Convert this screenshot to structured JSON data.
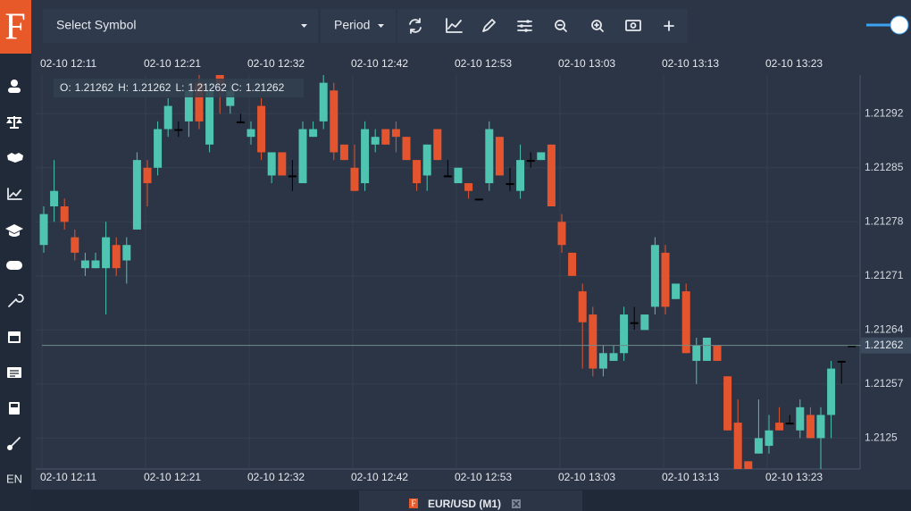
{
  "sidebar": {
    "logo": "F",
    "language": "EN"
  },
  "toolbar": {
    "symbol_select": "Select Symbol",
    "period": "Period"
  },
  "chart": {
    "type": "candlestick",
    "ylim": [
      1.21246,
      1.21297
    ],
    "yticks": [
      1.21292,
      1.21285,
      1.21278,
      1.21271,
      1.21264,
      1.21257,
      1.2125
    ],
    "xticks": [
      "02-10 12:11",
      "02-10 12:21",
      "02-10 12:32",
      "02-10 12:42",
      "02-10 12:53",
      "02-10 13:03",
      "02-10 13:13",
      "02-10 13:23"
    ],
    "legend": [
      {
        "label": "O:",
        "value": 1.21262
      },
      {
        "label": "H:",
        "value": 1.21262
      },
      {
        "label": "L:",
        "value": 1.21262
      },
      {
        "label": "C:",
        "value": 1.21262
      }
    ],
    "last_price": 1.21262,
    "colors": {
      "up": "#4fc4b0",
      "down": "#e4552f",
      "flat": "#000000"
    },
    "candles": [
      [
        1.21275,
        1.2128,
        1.21274,
        1.21279
      ],
      [
        1.2128,
        1.21286,
        1.21278,
        1.21282
      ],
      [
        1.2128,
        1.21281,
        1.21277,
        1.21278
      ],
      [
        1.21276,
        1.21277,
        1.21273,
        1.21274
      ],
      [
        1.21272,
        1.21274,
        1.21271,
        1.21273
      ],
      [
        1.21272,
        1.21274,
        1.21272,
        1.21273
      ],
      [
        1.21272,
        1.21278,
        1.21266,
        1.21276
      ],
      [
        1.21275,
        1.21276,
        1.21271,
        1.21272
      ],
      [
        1.21273,
        1.21276,
        1.2127,
        1.21275
      ],
      [
        1.21277,
        1.21287,
        1.21277,
        1.21286
      ],
      [
        1.21285,
        1.21286,
        1.2128,
        1.21283
      ],
      [
        1.21285,
        1.21291,
        1.21284,
        1.2129
      ],
      [
        1.2129,
        1.21294,
        1.21289,
        1.21293
      ],
      [
        1.2129,
        1.21291,
        1.21289,
        1.2129
      ],
      [
        1.21291,
        1.21296,
        1.21289,
        1.21295
      ],
      [
        1.21296,
        1.21297,
        1.2129,
        1.21291
      ],
      [
        1.21288,
        1.21296,
        1.21287,
        1.21295
      ],
      [
        1.21297,
        1.21298,
        1.21292,
        1.21296
      ],
      [
        1.21293,
        1.21296,
        1.21292,
        1.21295
      ],
      [
        1.21291,
        1.21292,
        1.21291,
        1.21291
      ],
      [
        1.21289,
        1.21291,
        1.21288,
        1.2129
      ],
      [
        1.21293,
        1.21294,
        1.21286,
        1.21287
      ],
      [
        1.21284,
        1.21287,
        1.21283,
        1.21287
      ],
      [
        1.21287,
        1.21287,
        1.21284,
        1.21284
      ],
      [
        1.21284,
        1.21286,
        1.21282,
        1.21284
      ],
      [
        1.21283,
        1.21291,
        1.21283,
        1.2129
      ],
      [
        1.21289,
        1.21291,
        1.21289,
        1.2129
      ],
      [
        1.21291,
        1.21297,
        1.2129,
        1.21296
      ],
      [
        1.21295,
        1.21296,
        1.21286,
        1.21287
      ],
      [
        1.21288,
        1.21288,
        1.21286,
        1.21286
      ],
      [
        1.21285,
        1.21288,
        1.21282,
        1.21282
      ],
      [
        1.21283,
        1.21291,
        1.21282,
        1.2129
      ],
      [
        1.21288,
        1.2129,
        1.21287,
        1.21289
      ],
      [
        1.2129,
        1.2129,
        1.21288,
        1.21288
      ],
      [
        1.2129,
        1.21291,
        1.21287,
        1.21289
      ],
      [
        1.21289,
        1.21289,
        1.21286,
        1.21286
      ],
      [
        1.21286,
        1.21286,
        1.21282,
        1.21283
      ],
      [
        1.21284,
        1.21288,
        1.21282,
        1.21288
      ],
      [
        1.2129,
        1.2129,
        1.21286,
        1.21286
      ],
      [
        1.21284,
        1.21286,
        1.21284,
        1.21284
      ],
      [
        1.21283,
        1.21285,
        1.21283,
        1.21285
      ],
      [
        1.21283,
        1.21283,
        1.21281,
        1.21282
      ],
      [
        1.21281,
        1.21281,
        1.21281,
        1.21281
      ],
      [
        1.21283,
        1.21291,
        1.21282,
        1.2129
      ],
      [
        1.21289,
        1.21289,
        1.21284,
        1.21284
      ],
      [
        1.21283,
        1.21285,
        1.21282,
        1.21283
      ],
      [
        1.21282,
        1.21288,
        1.21281,
        1.21286
      ],
      [
        1.21286,
        1.21287,
        1.21285,
        1.21286
      ],
      [
        1.21286,
        1.21287,
        1.21286,
        1.21287
      ],
      [
        1.21288,
        1.21288,
        1.2128,
        1.2128
      ],
      [
        1.21278,
        1.21279,
        1.21274,
        1.21275
      ],
      [
        1.21274,
        1.21274,
        1.21271,
        1.21271
      ],
      [
        1.21269,
        1.2127,
        1.21259,
        1.21265
      ],
      [
        1.21266,
        1.21267,
        1.21258,
        1.21259
      ],
      [
        1.21259,
        1.21262,
        1.21258,
        1.21261
      ],
      [
        1.2126,
        1.21262,
        1.2126,
        1.21261
      ],
      [
        1.21261,
        1.21267,
        1.2126,
        1.21266
      ],
      [
        1.21265,
        1.21267,
        1.21264,
        1.21265
      ],
      [
        1.21264,
        1.21266,
        1.21264,
        1.21266
      ],
      [
        1.21267,
        1.21276,
        1.21266,
        1.21275
      ],
      [
        1.21274,
        1.21275,
        1.21266,
        1.21267
      ],
      [
        1.21268,
        1.2127,
        1.21268,
        1.2127
      ],
      [
        1.21269,
        1.2127,
        1.21261,
        1.21261
      ],
      [
        1.2126,
        1.21263,
        1.21257,
        1.21262
      ],
      [
        1.2126,
        1.21263,
        1.2126,
        1.21263
      ],
      [
        1.21262,
        1.21262,
        1.2126,
        1.2126
      ],
      [
        1.21258,
        1.21258,
        1.21251,
        1.21251
      ],
      [
        1.21252,
        1.21255,
        1.21246,
        1.21246
      ],
      [
        1.21247,
        1.21247,
        1.21246,
        1.21246
      ],
      [
        1.21248,
        1.21255,
        1.21248,
        1.2125
      ],
      [
        1.21249,
        1.21253,
        1.21248,
        1.21251
      ],
      [
        1.21252,
        1.21254,
        1.21251,
        1.21251
      ],
      [
        1.21252,
        1.21253,
        1.21252,
        1.21252
      ],
      [
        1.21251,
        1.21255,
        1.2125,
        1.21254
      ],
      [
        1.21253,
        1.21254,
        1.2125,
        1.2125
      ],
      [
        1.2125,
        1.21254,
        1.21246,
        1.21253
      ],
      [
        1.21253,
        1.2126,
        1.2125,
        1.21259
      ],
      [
        1.2126,
        1.2126,
        1.21257,
        1.2126
      ],
      [
        1.21262,
        1.21262,
        1.21262,
        1.21262
      ]
    ]
  },
  "tabs": [
    {
      "label": "EUR/USD (M1)"
    }
  ]
}
